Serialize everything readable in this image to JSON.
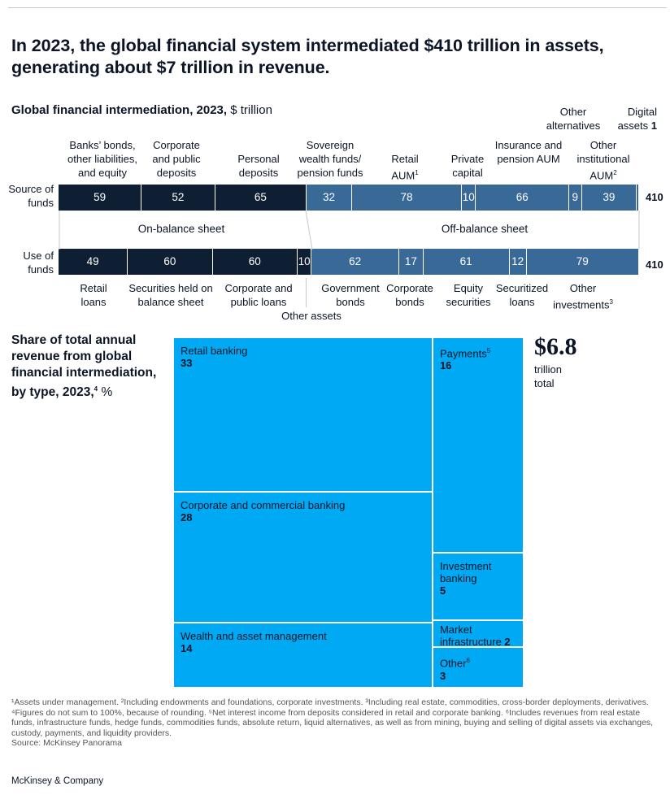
{
  "headline": "In 2023, the global financial system intermediated $410 trillion in assets, generating about $7 trillion in revenue.",
  "subtitle": {
    "bold": "Global financial intermediation, 2023,",
    "unit": "$ trillion"
  },
  "colors": {
    "on_balance": "#0f1f33",
    "off_balance": "#386997",
    "treemap": "#00a9f4",
    "text": "#0b1526"
  },
  "chart_data": [
    {
      "type": "bar",
      "orientation": "horizontal-stacked",
      "title": "Global financial intermediation, 2023, $ trillion",
      "series": [
        {
          "name": "Source of funds",
          "total": "410",
          "segments": [
            {
              "label": "Banks’ bonds, other liabilities, and equity",
              "value": 59,
              "group": "On-balance sheet"
            },
            {
              "label": "Corporate and public deposits",
              "value": 52,
              "group": "On-balance sheet"
            },
            {
              "label": "Personal deposits",
              "value": 65,
              "group": "On-balance sheet"
            },
            {
              "label": "Sovereign wealth funds/ pension funds",
              "value": 32,
              "group": "Off-balance sheet"
            },
            {
              "label": "Retail AUM",
              "value": 78,
              "group": "Off-balance sheet"
            },
            {
              "label": "Private capital",
              "value": 10,
              "group": "Off-balance sheet"
            },
            {
              "label": "Insurance and pension AUM",
              "value": 66,
              "group": "Off-balance sheet"
            },
            {
              "label": "Other alternatives",
              "value": 9,
              "group": "Off-balance sheet"
            },
            {
              "label": "Other institutional AUM",
              "value": 39,
              "group": "Off-balance sheet"
            },
            {
              "label": "Digital assets",
              "value": 1,
              "group": "Off-balance sheet"
            }
          ]
        },
        {
          "name": "Use of funds",
          "total": "410",
          "segments": [
            {
              "label": "Retail loans",
              "value": 49,
              "group": "On-balance sheet"
            },
            {
              "label": "Securities held on balance sheet",
              "value": 60,
              "group": "On-balance sheet"
            },
            {
              "label": "Corporate and public loans",
              "value": 60,
              "group": "On-balance sheet"
            },
            {
              "label": "Other assets",
              "value": 10,
              "group": "On-balance sheet"
            },
            {
              "label": "Government bonds",
              "value": 62,
              "group": "Off-balance sheet"
            },
            {
              "label": "Corporate bonds",
              "value": 17,
              "group": "Off-balance sheet"
            },
            {
              "label": "Equity securities",
              "value": 61,
              "group": "Off-balance sheet"
            },
            {
              "label": "Securitized loans",
              "value": 12,
              "group": "Off-balance sheet"
            },
            {
              "label": "Other investments",
              "value": 79,
              "group": "Off-balance sheet"
            }
          ]
        }
      ],
      "groups": [
        "On-balance sheet",
        "Off-balance sheet"
      ],
      "row_labels": [
        "Source of funds",
        "Use of funds"
      ]
    },
    {
      "type": "treemap",
      "title": "Share of total annual revenue from global financial intermediation, by type, 2023,",
      "title_sup": "4",
      "unit": "%",
      "total_value": "$6.8",
      "total_label": "trillion total",
      "items": [
        {
          "label": "Retail banking",
          "value": 33
        },
        {
          "label": "Corporate and commercial banking",
          "value": 28
        },
        {
          "label": "Wealth and asset management",
          "value": 14
        },
        {
          "label": "Payments",
          "sup": "5",
          "value": 16
        },
        {
          "label": "Investment banking",
          "value": 5
        },
        {
          "label": "Market infrastructure",
          "value": 2
        },
        {
          "label": "Other",
          "sup": "6",
          "value": 3
        }
      ]
    }
  ],
  "labels": {
    "top": {
      "banks": "Banks’ bonds, other liabilities, and equity",
      "corporate_deposits": "Corporate and public deposits",
      "personal": "Personal deposits",
      "sovereign": "Sovereign wealth funds/ pension funds",
      "retail_aum": "Retail AUM",
      "retail_aum_sup": "1",
      "private": "Private capital",
      "insurance": "Insurance and pension AUM",
      "other_alt": "Other alternatives",
      "other_inst": "Other institutional AUM",
      "other_inst_sup": "2",
      "digital": "Digital assets",
      "digital_value": "1"
    },
    "bottom": {
      "retail_loans": "Retail loans",
      "securities_held": "Securities held on balance sheet",
      "corp_loans": "Corporate and public loans",
      "other_assets": "Other assets",
      "gov_bonds": "Government bonds",
      "corp_bonds": "Corporate bonds",
      "equity": "Equity securities",
      "securitized": "Securitized loans",
      "other_inv": "Other investments",
      "other_inv_sup": "3"
    }
  },
  "footnotes": "¹Assets under management. ²Including endowments and foundations, corporate investments. ³Including real estate, commodities, cross-border deployments, derivatives. ⁴Figures do not sum to 100%, because of rounding. ⁵Net interest income from deposits considered in retail and corporate banking. ⁶Includes revenues from real estate funds, infrastructure funds, hedge funds, commodities funds, absolute return, liquid alternatives, as well as from mining, buying and selling of digital assets via exchanges, custody, payments, and liquidity providers.",
  "source": "Source: McKinsey Panorama",
  "brand": "McKinsey & Company"
}
